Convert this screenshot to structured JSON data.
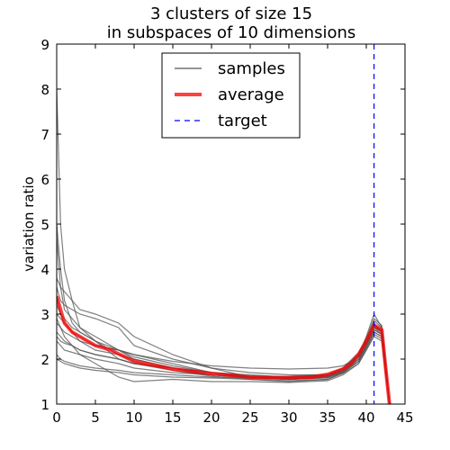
{
  "chart_data": {
    "type": "line",
    "title_lines": [
      "3 clusters of size 15",
      "in subspaces of 10 dimensions"
    ],
    "xlabel": "",
    "ylabel": "variation ratio",
    "xlim": [
      0,
      45
    ],
    "ylim": [
      1,
      9
    ],
    "xticks": [
      0,
      5,
      10,
      15,
      20,
      25,
      30,
      35,
      40,
      45
    ],
    "yticks": [
      1,
      2,
      3,
      4,
      5,
      6,
      7,
      8,
      9
    ],
    "grid": false,
    "legend": {
      "placement": "top-center",
      "entries": [
        {
          "label": "samples",
          "style": "thin-gray-solid"
        },
        {
          "label": "average",
          "style": "thick-red-solid"
        },
        {
          "label": "target",
          "style": "blue-dashed"
        }
      ]
    },
    "colors": {
      "samples": "#555555",
      "average": "#ff0000",
      "target": "#0000ff"
    },
    "target_x": 41,
    "average": {
      "x": [
        0,
        0.5,
        1,
        2,
        3,
        4,
        5,
        7,
        10,
        13,
        15,
        18,
        20,
        25,
        30,
        33,
        35,
        37,
        38,
        39,
        40,
        41,
        42,
        42.5,
        43
      ],
      "y": [
        3.4,
        3.1,
        2.8,
        2.6,
        2.5,
        2.4,
        2.3,
        2.2,
        1.95,
        1.85,
        1.78,
        1.72,
        1.68,
        1.6,
        1.58,
        1.6,
        1.66,
        1.78,
        1.9,
        2.1,
        2.4,
        2.75,
        2.65,
        1.8,
        1.0
      ]
    },
    "samples": [
      {
        "x": [
          0,
          0.5,
          1,
          2,
          3,
          5,
          8,
          10,
          15,
          20,
          25,
          30,
          35,
          37,
          39,
          40,
          41,
          42,
          42.5,
          43
        ],
        "y": [
          8.0,
          5.0,
          4.0,
          3.3,
          2.7,
          2.4,
          2.1,
          2.0,
          1.8,
          1.7,
          1.6,
          1.55,
          1.6,
          1.75,
          2.1,
          2.5,
          3.0,
          2.7,
          1.9,
          1.0
        ]
      },
      {
        "x": [
          0,
          0.5,
          1,
          2,
          3,
          5,
          8,
          10,
          15,
          20,
          25,
          30,
          35,
          37,
          39,
          40,
          41,
          42,
          42.5,
          43
        ],
        "y": [
          5.0,
          4.0,
          3.3,
          2.8,
          2.6,
          2.4,
          2.2,
          2.05,
          1.85,
          1.7,
          1.62,
          1.6,
          1.65,
          1.8,
          2.15,
          2.45,
          2.9,
          2.75,
          1.9,
          1.0
        ]
      },
      {
        "x": [
          0,
          0.5,
          1,
          2,
          3,
          5,
          8,
          10,
          15,
          20,
          25,
          30,
          35,
          37,
          39,
          40,
          41,
          42,
          42.5,
          43
        ],
        "y": [
          4.7,
          3.6,
          3.1,
          2.9,
          2.7,
          2.5,
          2.2,
          2.0,
          1.8,
          1.65,
          1.6,
          1.58,
          1.62,
          1.75,
          2.05,
          2.4,
          2.8,
          2.6,
          1.8,
          1.0
        ]
      },
      {
        "x": [
          0,
          0.5,
          1,
          2,
          3,
          5,
          8,
          10,
          15,
          20,
          25,
          30,
          35,
          37,
          39,
          40,
          41,
          42,
          42.5,
          43
        ],
        "y": [
          3.8,
          3.6,
          3.5,
          3.3,
          3.1,
          3.0,
          2.8,
          2.5,
          2.1,
          1.8,
          1.6,
          1.55,
          1.58,
          1.7,
          2.0,
          2.35,
          2.7,
          2.55,
          1.8,
          1.0
        ]
      },
      {
        "x": [
          0,
          0.5,
          1,
          2,
          3,
          5,
          8,
          10,
          15,
          20,
          25,
          30,
          35,
          37,
          39,
          40,
          41,
          42,
          42.5,
          43
        ],
        "y": [
          3.6,
          3.3,
          3.2,
          3.1,
          3.0,
          2.9,
          2.7,
          2.3,
          2.0,
          1.8,
          1.7,
          1.65,
          1.65,
          1.75,
          2.0,
          2.3,
          2.75,
          2.6,
          1.8,
          1.0
        ]
      },
      {
        "x": [
          0,
          0.5,
          1,
          2,
          3,
          5,
          8,
          10,
          15,
          20,
          25,
          30,
          35,
          37,
          39,
          40,
          41,
          42,
          42.5,
          43
        ],
        "y": [
          3.4,
          3.0,
          2.8,
          2.6,
          2.5,
          2.3,
          2.2,
          2.1,
          1.9,
          1.7,
          1.6,
          1.6,
          1.63,
          1.78,
          2.1,
          2.45,
          2.85,
          2.7,
          1.85,
          1.0
        ]
      },
      {
        "x": [
          0,
          0.5,
          1,
          2,
          3,
          5,
          8,
          10,
          15,
          20,
          25,
          30,
          35,
          37,
          39,
          40,
          41,
          42,
          42.5,
          43
        ],
        "y": [
          3.2,
          3.0,
          2.9,
          2.7,
          2.6,
          2.4,
          2.0,
          1.9,
          1.8,
          1.65,
          1.58,
          1.55,
          1.6,
          1.72,
          2.05,
          2.4,
          2.7,
          2.6,
          1.8,
          1.0
        ]
      },
      {
        "x": [
          0,
          0.5,
          1,
          2,
          3,
          5,
          8,
          10,
          15,
          20,
          25,
          30,
          35,
          37,
          39,
          40,
          41,
          42,
          42.5,
          43
        ],
        "y": [
          3.0,
          2.9,
          2.8,
          2.6,
          2.4,
          2.2,
          2.1,
          1.95,
          1.75,
          1.62,
          1.55,
          1.52,
          1.55,
          1.7,
          1.95,
          2.3,
          2.65,
          2.55,
          1.8,
          1.0
        ]
      },
      {
        "x": [
          0,
          0.5,
          1,
          2,
          3,
          5,
          8,
          10,
          15,
          20,
          25,
          30,
          35,
          37,
          39,
          40,
          41,
          42,
          42.5,
          43
        ],
        "y": [
          2.8,
          2.7,
          2.6,
          2.5,
          2.4,
          2.3,
          2.2,
          2.1,
          1.95,
          1.85,
          1.8,
          1.78,
          1.8,
          1.85,
          2.05,
          2.35,
          2.7,
          2.65,
          1.85,
          1.0
        ]
      },
      {
        "x": [
          0,
          0.5,
          1,
          2,
          3,
          5,
          8,
          10,
          15,
          20,
          25,
          30,
          35,
          37,
          39,
          40,
          41,
          42,
          42.5,
          43
        ],
        "y": [
          2.6,
          2.5,
          2.4,
          2.3,
          2.2,
          2.1,
          2.0,
          1.9,
          1.75,
          1.65,
          1.6,
          1.62,
          1.66,
          1.8,
          2.1,
          2.4,
          2.75,
          2.65,
          1.85,
          1.0
        ]
      },
      {
        "x": [
          0,
          0.5,
          1,
          2,
          3,
          5,
          8,
          10,
          15,
          20,
          25,
          30,
          35,
          37,
          39,
          40,
          41,
          42,
          42.5,
          43
        ],
        "y": [
          2.5,
          2.4,
          2.35,
          2.3,
          2.2,
          2.1,
          2.0,
          1.9,
          1.8,
          1.7,
          1.65,
          1.6,
          1.62,
          1.75,
          2.0,
          2.3,
          2.65,
          2.55,
          1.8,
          1.0
        ]
      },
      {
        "x": [
          0,
          0.5,
          1,
          2,
          3,
          5,
          8,
          10,
          15,
          20,
          25,
          30,
          35,
          37,
          39,
          40,
          41,
          42,
          42.5,
          43
        ],
        "y": [
          2.4,
          2.3,
          2.2,
          2.15,
          2.1,
          2.0,
          1.9,
          1.8,
          1.7,
          1.65,
          1.6,
          1.58,
          1.6,
          1.72,
          1.95,
          2.25,
          2.6,
          2.5,
          1.75,
          1.0
        ]
      },
      {
        "x": [
          0,
          0.5,
          1,
          2,
          3,
          5,
          8,
          10,
          15,
          20,
          25,
          30,
          35,
          37,
          39,
          40,
          41,
          42,
          42.5,
          43
        ],
        "y": [
          2.1,
          2.0,
          1.95,
          1.9,
          1.85,
          1.8,
          1.75,
          1.7,
          1.65,
          1.6,
          1.58,
          1.56,
          1.6,
          1.7,
          1.95,
          2.25,
          2.6,
          2.5,
          1.75,
          1.0
        ]
      },
      {
        "x": [
          0,
          0.5,
          1,
          2,
          3,
          5,
          8,
          10,
          15,
          20,
          25,
          30,
          35,
          37,
          39,
          40,
          41,
          42,
          42.5,
          43
        ],
        "y": [
          2.0,
          1.95,
          1.9,
          1.85,
          1.8,
          1.75,
          1.7,
          1.65,
          1.6,
          1.58,
          1.55,
          1.5,
          1.55,
          1.68,
          1.9,
          2.2,
          2.55,
          2.45,
          1.7,
          1.0
        ]
      },
      {
        "x": [
          0,
          0.5,
          1,
          2,
          3,
          5,
          8,
          10,
          15,
          20,
          25,
          30,
          35,
          37,
          39,
          40,
          41,
          42,
          42.5,
          43
        ],
        "y": [
          2.9,
          2.7,
          2.5,
          2.3,
          2.1,
          1.9,
          1.6,
          1.5,
          1.55,
          1.5,
          1.5,
          1.48,
          1.52,
          1.65,
          1.9,
          2.2,
          2.5,
          2.4,
          1.7,
          1.0
        ]
      }
    ]
  }
}
